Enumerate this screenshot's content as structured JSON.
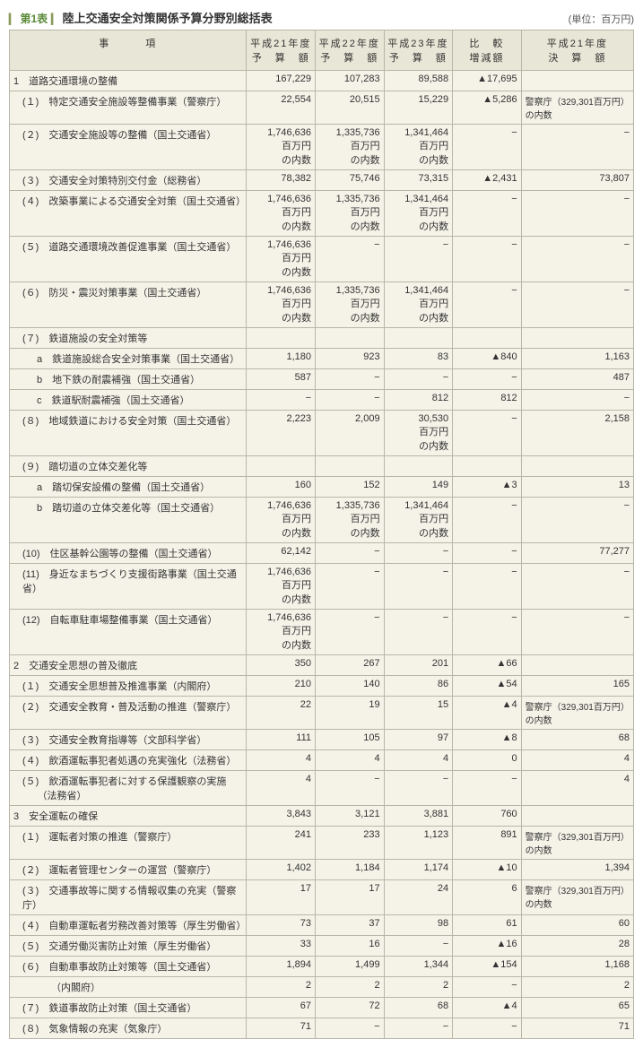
{
  "header": {
    "table_no": "第1表",
    "title": "陸上交通安全対策関係予算分野別総括表",
    "unit": "(単位：百万円)"
  },
  "columns": {
    "item": "事　　　項",
    "h21y": "平成21年度\n予　算　額",
    "h22y": "平成22年度\n予　算　額",
    "h23y": "平成23年度\n予　算　額",
    "diff": "比　較\n増減額",
    "h21k": "平成21年度\n決　算　額"
  },
  "note_police": "警察庁（329,301百万円）の内数",
  "naisu": "百万円\nの内数",
  "rows": [
    {
      "class": "section-top",
      "indent": 0,
      "label": "1　道路交通環境の整備",
      "v": [
        "167,229",
        "107,283",
        "89,588",
        "▲17,695",
        ""
      ]
    },
    {
      "class": "",
      "indent": 1,
      "label": "(１)　特定交通安全施設等整備事業（警察庁）",
      "v": [
        "22,554",
        "20,515",
        "15,229",
        "▲5,286",
        "NOTE_POLICE"
      ]
    },
    {
      "class": "dashed-top",
      "indent": 1,
      "label": "(２)　交通安全施設等の整備（国土交通省）",
      "v": [
        "1,746,636\n百万円\nの内数",
        "1,335,736\n百万円\nの内数",
        "1,341,464\n百万円\nの内数",
        "−",
        "−"
      ]
    },
    {
      "class": "dashed-top",
      "indent": 1,
      "label": "(３)　交通安全対策特別交付金（総務省）",
      "v": [
        "78,382",
        "75,746",
        "73,315",
        "▲2,431",
        "73,807"
      ]
    },
    {
      "class": "dashed-top",
      "indent": 1,
      "label": "(４)　改築事業による交通安全対策（国土交通省）",
      "v": [
        "1,746,636\n百万円\nの内数",
        "1,335,736\n百万円\nの内数",
        "1,341,464\n百万円\nの内数",
        "−",
        "−"
      ]
    },
    {
      "class": "dashed-top",
      "indent": 1,
      "label": "(５)　道路交通環境改善促進事業（国土交通省）",
      "v": [
        "1,746,636\n百万円\nの内数",
        "−",
        "−",
        "−",
        "−"
      ]
    },
    {
      "class": "dashed-top",
      "indent": 1,
      "label": "(６)　防災・震災対策事業（国土交通省）",
      "v": [
        "1,746,636\n百万円\nの内数",
        "1,335,736\n百万円\nの内数",
        "1,341,464\n百万円\nの内数",
        "−",
        "−"
      ]
    },
    {
      "class": "dashed-top",
      "indent": 1,
      "label": "(７)　鉄道施設の安全対策等",
      "v": [
        "",
        "",
        "",
        "",
        ""
      ]
    },
    {
      "class": "",
      "indent": 2,
      "label": "a　鉄道施設総合安全対策事業（国土交通省）",
      "v": [
        "1,180",
        "923",
        "83",
        "▲840",
        "1,163"
      ]
    },
    {
      "class": "",
      "indent": 2,
      "label": "b　地下鉄の耐震補強（国土交通省）",
      "v": [
        "587",
        "−",
        "−",
        "−",
        "487"
      ]
    },
    {
      "class": "",
      "indent": 2,
      "label": "c　鉄道駅耐震補強（国土交通省）",
      "v": [
        "−",
        "−",
        "812",
        "812",
        "−"
      ]
    },
    {
      "class": "dashed-top",
      "indent": 1,
      "label": "(８)　地域鉄道における安全対策（国土交通省）",
      "v": [
        "2,223",
        "2,009",
        "30,530\n百万円\nの内数",
        "−",
        "2,158"
      ]
    },
    {
      "class": "dashed-top",
      "indent": 1,
      "label": "(９)　踏切道の立体交差化等",
      "v": [
        "",
        "",
        "",
        "",
        ""
      ]
    },
    {
      "class": "",
      "indent": 2,
      "label": "a　踏切保安設備の整備（国土交通省）",
      "v": [
        "160",
        "152",
        "149",
        "▲3",
        "13"
      ]
    },
    {
      "class": "",
      "indent": 2,
      "label": "b　踏切道の立体交差化等（国土交通省）",
      "v": [
        "1,746,636\n百万円\nの内数",
        "1,335,736\n百万円\nの内数",
        "1,341,464\n百万円\nの内数",
        "−",
        "−"
      ]
    },
    {
      "class": "dashed-top",
      "indent": 1,
      "label": "(10)　住区基幹公園等の整備（国土交通省）",
      "v": [
        "62,142",
        "−",
        "−",
        "−",
        "77,277"
      ]
    },
    {
      "class": "dashed-top",
      "indent": 1,
      "label": "(11)　身近なまちづくり支援街路事業（国土交通省）",
      "v": [
        "1,746,636\n百万円\nの内数",
        "−",
        "−",
        "−",
        "−"
      ]
    },
    {
      "class": "dashed-top",
      "indent": 1,
      "label": "(12)　自転車駐車場整備事業（国土交通省）",
      "v": [
        "1,746,636\n百万円\nの内数",
        "−",
        "−",
        "−",
        "−"
      ]
    },
    {
      "class": "section-top",
      "indent": 0,
      "label": "2　交通安全思想の普及徹底",
      "v": [
        "350",
        "267",
        "201",
        "▲66",
        ""
      ]
    },
    {
      "class": "",
      "indent": 1,
      "label": "(１)　交通安全思想普及推進事業（内閣府）",
      "v": [
        "210",
        "140",
        "86",
        "▲54",
        "165"
      ]
    },
    {
      "class": "dashed-top",
      "indent": 1,
      "label": "(２)　交通安全教育・普及活動の推進（警察庁）",
      "v": [
        "22",
        "19",
        "15",
        "▲4",
        "NOTE_POLICE"
      ]
    },
    {
      "class": "dashed-top",
      "indent": 1,
      "label": "(３)　交通安全教育指導等（文部科学省）",
      "v": [
        "111",
        "105",
        "97",
        "▲8",
        "68"
      ]
    },
    {
      "class": "dashed-top",
      "indent": 1,
      "label": "(４)　飲酒運転事犯者処遇の充実強化（法務省）",
      "v": [
        "4",
        "4",
        "4",
        "0",
        "4"
      ]
    },
    {
      "class": "dashed-top",
      "indent": 1,
      "label": "(５)　飲酒運転事犯者に対する保護観察の実施\n　　（法務省）",
      "v": [
        "4",
        "−",
        "−",
        "−",
        "4"
      ]
    },
    {
      "class": "section-top",
      "indent": 0,
      "label": "3　安全運転の確保",
      "v": [
        "3,843",
        "3,121",
        "3,881",
        "760",
        ""
      ]
    },
    {
      "class": "",
      "indent": 1,
      "label": "(１)　運転者対策の推進（警察庁）",
      "v": [
        "241",
        "233",
        "1,123",
        "891",
        "NOTE_POLICE"
      ]
    },
    {
      "class": "dashed-top",
      "indent": 1,
      "label": "(２)　運転者管理センターの運営（警察庁）",
      "v": [
        "1,402",
        "1,184",
        "1,174",
        "▲10",
        "1,394"
      ]
    },
    {
      "class": "dashed-top",
      "indent": 1,
      "label": "(３)　交通事故等に関する情報収集の充実（警察庁）",
      "v": [
        "17",
        "17",
        "24",
        "6",
        "NOTE_POLICE"
      ]
    },
    {
      "class": "dashed-top",
      "indent": 1,
      "label": "(４)　自動車運転者労務改善対策等（厚生労働省）",
      "v": [
        "73",
        "37",
        "98",
        "61",
        "60"
      ]
    },
    {
      "class": "dashed-top",
      "indent": 1,
      "label": "(５)　交通労働災害防止対策（厚生労働省）",
      "v": [
        "33",
        "16",
        "−",
        "▲16",
        "28"
      ]
    },
    {
      "class": "dashed-top",
      "indent": 1,
      "label": "(６)　自動車事故防止対策等（国土交通省）",
      "v": [
        "1,894",
        "1,499",
        "1,344",
        "▲154",
        "1,168"
      ]
    },
    {
      "class": "",
      "indent": 3,
      "label": "（内閣府）",
      "v": [
        "2",
        "2",
        "2",
        "−",
        "2"
      ]
    },
    {
      "class": "dashed-top",
      "indent": 1,
      "label": "(７)　鉄道事故防止対策（国土交通省）",
      "v": [
        "67",
        "72",
        "68",
        "▲4",
        "65"
      ]
    },
    {
      "class": "dashed-top",
      "indent": 1,
      "label": "(８)　気象情報の充実（気象庁）",
      "v": [
        "71",
        "−",
        "−",
        "−",
        "71"
      ]
    }
  ]
}
